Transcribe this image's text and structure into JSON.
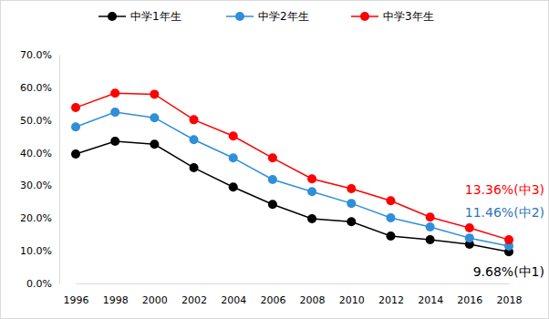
{
  "chart_data": {
    "type": "line",
    "categories": [
      "1996",
      "1998",
      "2000",
      "2002",
      "2004",
      "2006",
      "2008",
      "2010",
      "2012",
      "2014",
      "2016",
      "2018"
    ],
    "series": [
      {
        "name": "中学1年生",
        "color": "#000000",
        "marker": "circle",
        "line_style": "solid",
        "values": [
          39.6,
          43.5,
          42.6,
          35.4,
          29.5,
          24.2,
          19.8,
          18.9,
          14.5,
          13.4,
          12.0,
          9.68
        ]
      },
      {
        "name": "中学2年生",
        "color": "#2f8fd8",
        "marker": "circle",
        "line_style": "solid",
        "values": [
          47.9,
          52.4,
          50.7,
          44.0,
          38.4,
          31.8,
          28.1,
          24.5,
          20.1,
          17.3,
          13.9,
          11.46
        ]
      },
      {
        "name": "中学3年生",
        "color": "#ff0000",
        "marker": "circle",
        "line_style": "solid",
        "values": [
          53.8,
          58.2,
          57.9,
          50.1,
          45.1,
          38.4,
          32.0,
          29.0,
          25.3,
          20.3,
          17.0,
          13.36
        ]
      }
    ],
    "ylim": [
      0,
      70
    ],
    "yticks": [
      {
        "value": 0,
        "label": "0.0%"
      },
      {
        "value": 10,
        "label": "10.0%"
      },
      {
        "value": 20,
        "label": "20.0%"
      },
      {
        "value": 30,
        "label": "30.0%"
      },
      {
        "value": 40,
        "label": "40.0%"
      },
      {
        "value": 50,
        "label": "50.0%"
      },
      {
        "value": 60,
        "label": "60.0%"
      },
      {
        "value": 70,
        "label": "70.0%"
      }
    ],
    "grid": false,
    "legend": "top",
    "annotations": [
      {
        "text": "9.68%(中1)",
        "color": "#000000"
      },
      {
        "text": "11.46%(中2)",
        "color": "#2e75b6"
      },
      {
        "text": "13.36%(中3)",
        "color": "#ff0000"
      }
    ]
  }
}
